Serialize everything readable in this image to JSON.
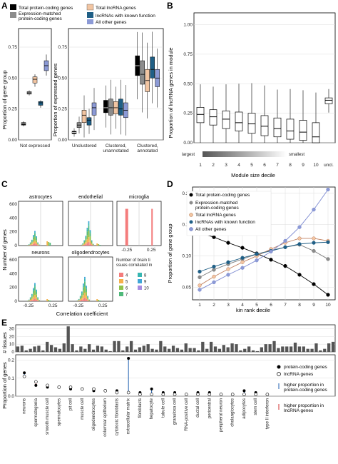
{
  "panels": {
    "a": "A",
    "b": "B",
    "c": "C",
    "d": "D",
    "e": "E"
  },
  "colors": {
    "protein": "#000000",
    "matched": "#8c8c8c",
    "lncrna": "#f2c5a2",
    "known": "#1f5f86",
    "other": "#8c9ad6",
    "hist": [
      "#f47c7c",
      "#f5b04a",
      "#8fc24a",
      "#4fb97a",
      "#37b6b1",
      "#3fa6d8",
      "#a78ce0",
      "#e86fd7"
    ]
  },
  "legend_a": {
    "items": [
      "Total protein-coding genes",
      "Total lncRNA genes",
      "Expression-matched protein-coding genes",
      "lncRNAs with known function",
      "All other genes"
    ]
  },
  "legend_d": {
    "items": [
      "Total protein-coding genes",
      "Expression-matched protein-coding genes",
      "Total lncRNA genes",
      "lncRNAs with known function",
      "All other genes"
    ]
  },
  "legend_c": {
    "title": "Number of brain tissues correlated in",
    "items": [
      "4",
      "5",
      "6",
      "7",
      "8",
      "9",
      "10"
    ]
  },
  "legend_e": {
    "items": [
      "protein-coding genes",
      "lncRNA genes",
      "higher proportion in protein-coding genes",
      "higher proportion in lncRNA genes"
    ]
  },
  "chart_data": [
    {
      "id": "A-left",
      "type": "box",
      "ylabel": "Proportion of gene group",
      "categories": [
        "Not expressed"
      ],
      "ylim": [
        0,
        0.9
      ],
      "yticks": [
        "0.00",
        "0.25",
        "0.50",
        "0.75"
      ],
      "groups": [
        {
          "category": "Not expressed",
          "series": "Total protein-coding genes",
          "median": 0.13,
          "q1": 0.12,
          "q3": 0.14,
          "lo": 0.11,
          "hi": 0.15
        },
        {
          "category": "Not expressed",
          "series": "Expression-matched protein-coding genes",
          "median": 0.38,
          "q1": 0.37,
          "q3": 0.39,
          "lo": 0.36,
          "hi": 0.4
        },
        {
          "category": "Not expressed",
          "series": "Total lncRNA genes",
          "median": 0.49,
          "q1": 0.46,
          "q3": 0.51,
          "lo": 0.43,
          "hi": 0.53
        },
        {
          "category": "Not expressed",
          "series": "lncRNAs with known function",
          "median": 0.3,
          "q1": 0.28,
          "q3": 0.31,
          "lo": 0.26,
          "hi": 0.32
        },
        {
          "category": "Not expressed",
          "series": "All other genes",
          "median": 0.6,
          "q1": 0.56,
          "q3": 0.64,
          "lo": 0.52,
          "hi": 0.69
        }
      ]
    },
    {
      "id": "A-right",
      "type": "box",
      "ylabel": "Proportion of expressed genes",
      "categories": [
        "Unclustered",
        "Clustered, unannotated",
        "Clustered, annotated"
      ],
      "ylim": [
        0,
        0.9
      ],
      "yticks": [
        "0.00",
        "0.25",
        "0.50",
        "0.75"
      ],
      "series": [
        "Total protein-coding genes",
        "Expression-matched protein-coding genes",
        "Total lncRNA genes",
        "lncRNAs with known function",
        "All other genes"
      ],
      "medians": [
        [
          0.06,
          0.12,
          0.2,
          0.16,
          0.26
        ],
        [
          0.26,
          0.26,
          0.26,
          0.25,
          0.24
        ],
        [
          0.6,
          0.53,
          0.48,
          0.57,
          0.5
        ]
      ],
      "q1": [
        [
          0.05,
          0.1,
          0.14,
          0.12,
          0.2
        ],
        [
          0.22,
          0.2,
          0.21,
          0.2,
          0.18
        ],
        [
          0.52,
          0.45,
          0.39,
          0.5,
          0.43
        ]
      ],
      "q3": [
        [
          0.07,
          0.14,
          0.24,
          0.18,
          0.3
        ],
        [
          0.32,
          0.33,
          0.31,
          0.33,
          0.3
        ],
        [
          0.68,
          0.64,
          0.57,
          0.67,
          0.57
        ]
      ]
    },
    {
      "id": "B",
      "type": "box",
      "ylabel": "Proportion of lncRNA genes in module",
      "xlabel": "Module size decile",
      "categories": [
        "1",
        "2",
        "3",
        "4",
        "5",
        "6",
        "7",
        "8",
        "9",
        "10",
        "uncl."
      ],
      "ylim": [
        0,
        1.1
      ],
      "yticks": [
        "0.00",
        "0.25",
        "0.50",
        "0.75",
        "1.00"
      ],
      "annotations": [
        "largest",
        "smallest"
      ],
      "medians": [
        0.24,
        0.22,
        0.2,
        0.17,
        0.16,
        0.14,
        0.12,
        0.1,
        0.09,
        0.05,
        0.36
      ],
      "q1": [
        0.17,
        0.15,
        0.12,
        0.1,
        0.08,
        0.06,
        0.05,
        0.03,
        0.02,
        0.0,
        0.33
      ],
      "q3": [
        0.3,
        0.28,
        0.27,
        0.26,
        0.25,
        0.23,
        0.21,
        0.2,
        0.19,
        0.17,
        0.38
      ]
    },
    {
      "id": "C",
      "type": "histogram",
      "ylabel": "Number of genes",
      "xlabel": "Correlation coefficient",
      "facets": [
        "astrocytes",
        "endothelial",
        "microglia",
        "neurons",
        "oligodendrocytes"
      ],
      "xticks": [
        "-0.25",
        "0.25"
      ],
      "yticks": [
        "0",
        "200",
        "400",
        "600"
      ]
    },
    {
      "id": "D",
      "type": "line",
      "ylabel": "Proportion of gene group",
      "xlabel": "kin rank decile",
      "x": [
        1,
        2,
        3,
        4,
        5,
        6,
        7,
        8,
        9,
        10
      ],
      "ylim": [
        0.03,
        0.21
      ],
      "yticks": [
        "0.05",
        "0.10",
        "0.15",
        "0.20"
      ],
      "series": [
        {
          "name": "Total protein-coding genes",
          "values": [
            0.137,
            0.13,
            0.121,
            0.113,
            0.104,
            0.094,
            0.084,
            0.07,
            0.055,
            0.038
          ]
        },
        {
          "name": "Expression-matched protein-coding genes",
          "values": [
            0.066,
            0.078,
            0.087,
            0.095,
            0.103,
            0.109,
            0.114,
            0.118,
            0.108,
            0.095
          ]
        },
        {
          "name": "Total lncRNA genes",
          "values": [
            0.053,
            0.067,
            0.079,
            0.09,
            0.1,
            0.111,
            0.121,
            0.128,
            0.128,
            0.124
          ]
        },
        {
          "name": "lncRNAs with known function",
          "values": [
            0.075,
            0.083,
            0.09,
            0.097,
            0.103,
            0.108,
            0.114,
            0.119,
            0.121,
            0.122
          ]
        },
        {
          "name": "All other genes",
          "values": [
            0.046,
            0.058,
            0.07,
            0.081,
            0.093,
            0.107,
            0.124,
            0.146,
            0.174,
            0.206
          ]
        }
      ]
    },
    {
      "id": "E",
      "type": "lollipop",
      "ylabel_top": "# tissues",
      "ylabel": "Proportion of genes",
      "yticks_top": [
        "0",
        "10",
        "20",
        "30"
      ],
      "yticks": [
        "0.0",
        "0.1",
        "0.2"
      ],
      "categories": [
        "neurons",
        "spermatogonia",
        "smooth muscle cell",
        "spermatocytes",
        "pit cell",
        "muscle cell",
        "oligodendrocytes",
        "columnar epithelium",
        "cytotoxic fibroblasts",
        "extracellular matrix",
        "fibroblasts",
        "hepatocyte",
        "tubule cell",
        "granulosa cell",
        "RNA-positive cell",
        "ductal cell",
        "pericentral",
        "peripheral neuron",
        "cholangiocytes",
        "adipocytes",
        "stem cell",
        "type II interferon"
      ],
      "protein": [
        0.13,
        0.06,
        0.05,
        0.05,
        0.04,
        0.04,
        0.03,
        0.03,
        0.03,
        0.21,
        0.02,
        0.04,
        0.02,
        0.02,
        0.01,
        0.02,
        0.02,
        0.01,
        0.01,
        0.03,
        0.02,
        0.01
      ],
      "lncrna": [
        0.11,
        0.08,
        0.06,
        0.05,
        0.05,
        0.04,
        0.04,
        0.03,
        0.02,
        0.02,
        0.01,
        0.01,
        0.01,
        0.01,
        0.01,
        0.01,
        0.01,
        0.01,
        0.01,
        0.01,
        0.01,
        0.01
      ]
    }
  ]
}
